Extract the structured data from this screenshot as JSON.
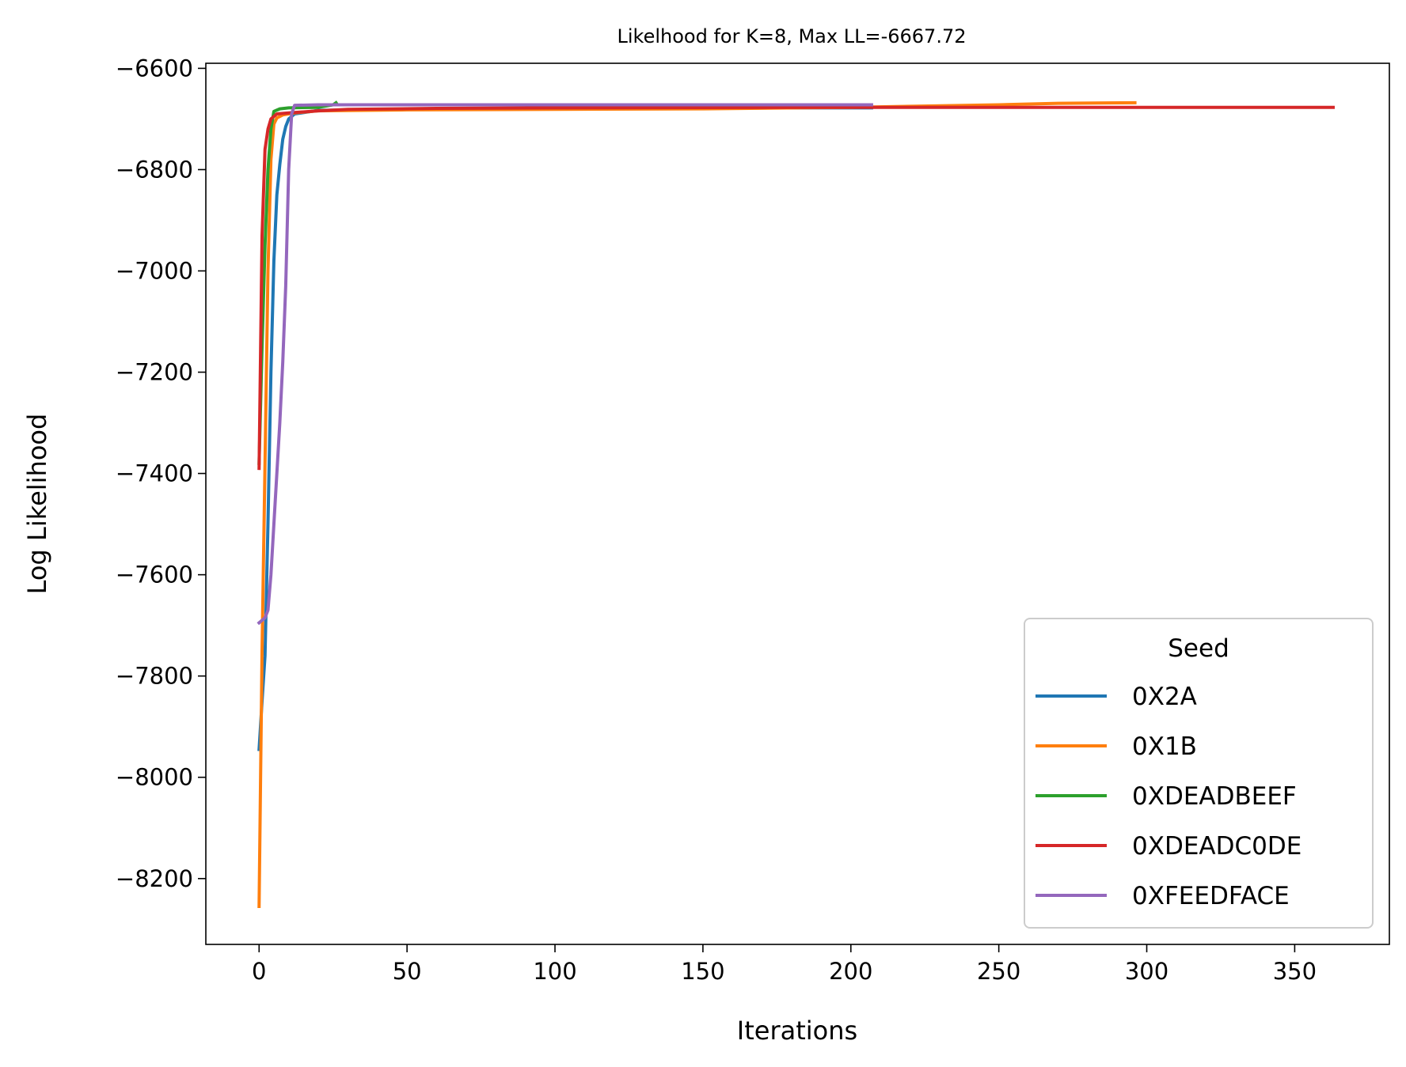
{
  "chart_data": {
    "type": "line",
    "title": "Likelhood for K=8,  Max LL=-6667.72",
    "xlabel": "Iterations",
    "ylabel": "Log Likelihood",
    "xlim": [
      -18,
      382
    ],
    "ylim": [
      -8330,
      -6590
    ],
    "xticks": [
      0,
      50,
      100,
      150,
      200,
      250,
      300,
      350
    ],
    "yticks": [
      -6600,
      -6800,
      -7000,
      -7200,
      -7400,
      -7600,
      -7800,
      -8000,
      -8200
    ],
    "grid": false,
    "legend": {
      "title": "Seed",
      "position": "lower-right"
    },
    "series": [
      {
        "name": "0X2A",
        "color": "#1f77b4",
        "points": [
          [
            0,
            -7945
          ],
          [
            1,
            -7850
          ],
          [
            2,
            -7760
          ],
          [
            3,
            -7500
          ],
          [
            4,
            -7200
          ],
          [
            5,
            -6980
          ],
          [
            6,
            -6850
          ],
          [
            7,
            -6790
          ],
          [
            8,
            -6740
          ],
          [
            9,
            -6715
          ],
          [
            10,
            -6700
          ],
          [
            12,
            -6690
          ],
          [
            20,
            -6683
          ],
          [
            60,
            -6680
          ],
          [
            100,
            -6679
          ],
          [
            140,
            -6679
          ],
          [
            180,
            -6678
          ],
          [
            207,
            -6678
          ]
        ]
      },
      {
        "name": "0X1B",
        "color": "#ff7f0e",
        "points": [
          [
            0,
            -8255
          ],
          [
            1,
            -7750
          ],
          [
            2,
            -7380
          ],
          [
            3,
            -7000
          ],
          [
            4,
            -6780
          ],
          [
            5,
            -6710
          ],
          [
            6,
            -6698
          ],
          [
            8,
            -6692
          ],
          [
            12,
            -6688
          ],
          [
            20,
            -6684
          ],
          [
            50,
            -6682
          ],
          [
            100,
            -6681
          ],
          [
            150,
            -6680
          ],
          [
            200,
            -6677
          ],
          [
            250,
            -6672
          ],
          [
            270,
            -6669
          ],
          [
            296,
            -6668
          ]
        ]
      },
      {
        "name": "0XDEADBEEF",
        "color": "#2ca02c",
        "points": [
          [
            0,
            -7380
          ],
          [
            1,
            -7150
          ],
          [
            2,
            -6950
          ],
          [
            3,
            -6800
          ],
          [
            4,
            -6720
          ],
          [
            5,
            -6685
          ],
          [
            7,
            -6680
          ],
          [
            10,
            -6678
          ],
          [
            20,
            -6677
          ],
          [
            25,
            -6672
          ],
          [
            26,
            -6668
          ]
        ]
      },
      {
        "name": "0XDEADC0DE",
        "color": "#d62728",
        "points": [
          [
            0,
            -7390
          ],
          [
            1,
            -6930
          ],
          [
            2,
            -6760
          ],
          [
            3,
            -6720
          ],
          [
            4,
            -6700
          ],
          [
            6,
            -6690
          ],
          [
            10,
            -6688
          ],
          [
            20,
            -6684
          ],
          [
            30,
            -6681
          ],
          [
            60,
            -6679
          ],
          [
            100,
            -6678
          ],
          [
            200,
            -6677
          ],
          [
            300,
            -6677
          ],
          [
            363,
            -6677
          ]
        ]
      },
      {
        "name": "0XFEEDFACE",
        "color": "#9467bd",
        "points": [
          [
            0,
            -7695
          ],
          [
            1,
            -7690
          ],
          [
            2,
            -7685
          ],
          [
            3,
            -7670
          ],
          [
            4,
            -7600
          ],
          [
            5,
            -7500
          ],
          [
            6,
            -7400
          ],
          [
            7,
            -7300
          ],
          [
            8,
            -7180
          ],
          [
            9,
            -7030
          ],
          [
            10,
            -6800
          ],
          [
            11,
            -6690
          ],
          [
            12,
            -6673
          ],
          [
            20,
            -6672
          ],
          [
            60,
            -6672
          ],
          [
            100,
            -6672
          ],
          [
            150,
            -6672
          ],
          [
            207,
            -6672
          ]
        ]
      }
    ]
  }
}
